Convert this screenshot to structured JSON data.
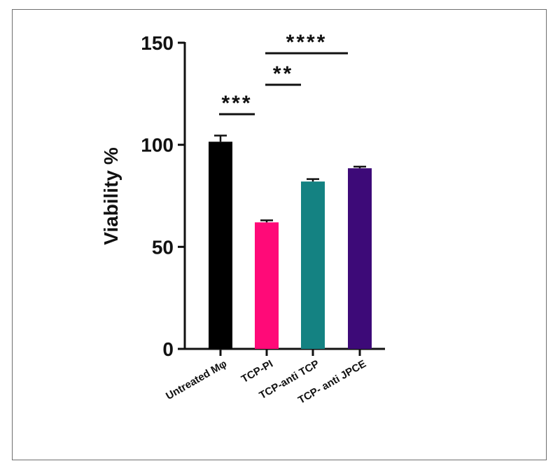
{
  "chart_data": {
    "type": "bar",
    "title": "",
    "xlabel": "",
    "ylabel": "Viability %",
    "ylim": [
      0,
      150
    ],
    "yticks": [
      0,
      50,
      100,
      150
    ],
    "grid": false,
    "categories": [
      "Untreated Mφ",
      "TCP-PI",
      "TCP-anti TCP",
      "TCP- anti JPCE"
    ],
    "values": [
      101.5,
      62,
      82,
      88.5
    ],
    "errors": [
      3,
      1,
      1.2,
      0.8
    ],
    "colors": [
      "#000000",
      "#ff0a78",
      "#148282",
      "#3d0a78"
    ],
    "significance": [
      {
        "from": 0,
        "to": 1,
        "label": "***"
      },
      {
        "from": 1,
        "to": 2,
        "label": "**"
      },
      {
        "from": 1,
        "to": 3,
        "label": "****"
      }
    ]
  }
}
